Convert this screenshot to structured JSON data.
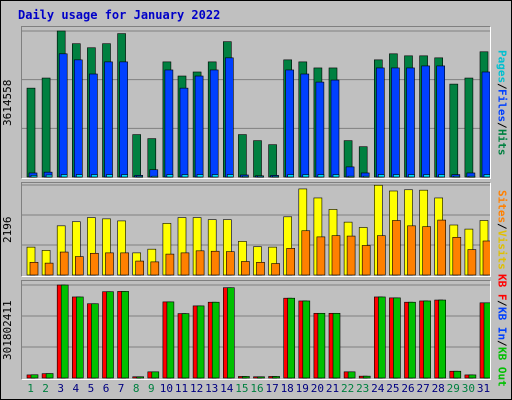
{
  "title": "Daily usage for January 2022",
  "chart_data": [
    {
      "type": "bar",
      "name": "pages-files-hits",
      "categories": [
        "1",
        "2",
        "3",
        "4",
        "5",
        "6",
        "7",
        "8",
        "9",
        "10",
        "11",
        "12",
        "13",
        "14",
        "15",
        "16",
        "17",
        "18",
        "19",
        "20",
        "21",
        "22",
        "23",
        "24",
        "25",
        "26",
        "27",
        "28",
        "29",
        "30",
        "31"
      ],
      "ymax_label": "3614558",
      "ylim": [
        0,
        3614558
      ],
      "series": [
        {
          "name": "Hits",
          "color": "#008040",
          "values": [
            2200000,
            2450000,
            3614558,
            3300000,
            3200000,
            3300000,
            3550000,
            1050000,
            950000,
            2850000,
            2500000,
            2600000,
            2850000,
            3350000,
            1050000,
            900000,
            800000,
            2900000,
            2850000,
            2700000,
            2700000,
            900000,
            750000,
            2900000,
            3050000,
            3000000,
            3000000,
            2950000,
            2300000,
            2450000,
            3100000
          ]
        },
        {
          "name": "Files",
          "color": "#0040ff",
          "values": [
            100000,
            120000,
            3050000,
            2900000,
            2550000,
            2850000,
            2850000,
            40000,
            180000,
            2650000,
            2200000,
            2500000,
            2650000,
            2950000,
            50000,
            30000,
            40000,
            2650000,
            2550000,
            2350000,
            2400000,
            250000,
            100000,
            2700000,
            2700000,
            2700000,
            2750000,
            2750000,
            60000,
            100000,
            2600000
          ]
        },
        {
          "name": "Pages",
          "color": "#00e0ff",
          "values": [
            40000,
            50000,
            60000,
            60000,
            60000,
            60000,
            60000,
            20000,
            20000,
            60000,
            60000,
            60000,
            60000,
            60000,
            20000,
            20000,
            20000,
            60000,
            60000,
            60000,
            60000,
            20000,
            20000,
            60000,
            60000,
            60000,
            60000,
            60000,
            20000,
            20000,
            60000
          ]
        }
      ]
    },
    {
      "type": "bar",
      "name": "visits-sites",
      "categories": [
        "1",
        "2",
        "3",
        "4",
        "5",
        "6",
        "7",
        "8",
        "9",
        "10",
        "11",
        "12",
        "13",
        "14",
        "15",
        "16",
        "17",
        "18",
        "19",
        "20",
        "21",
        "22",
        "23",
        "24",
        "25",
        "26",
        "27",
        "28",
        "29",
        "30",
        "31"
      ],
      "ymax_label": "2196",
      "ylim": [
        0,
        2196
      ],
      "series": [
        {
          "name": "Visits",
          "color": "#ffff00",
          "values": [
            680,
            600,
            1200,
            1300,
            1400,
            1370,
            1320,
            540,
            630,
            1260,
            1400,
            1400,
            1350,
            1350,
            820,
            690,
            680,
            1420,
            2100,
            1880,
            1600,
            1290,
            1160,
            2190,
            2050,
            2080,
            2070,
            1880,
            1220,
            1120,
            1330
          ]
        },
        {
          "name": "Sites",
          "color": "#ff8000",
          "values": [
            310,
            290,
            560,
            450,
            530,
            540,
            540,
            340,
            320,
            510,
            540,
            590,
            580,
            570,
            330,
            310,
            280,
            650,
            1080,
            930,
            960,
            950,
            720,
            960,
            1330,
            1200,
            1180,
            1340,
            920,
            620,
            830
          ]
        }
      ]
    },
    {
      "type": "bar",
      "name": "kb-in-out",
      "categories": [
        "1",
        "2",
        "3",
        "4",
        "5",
        "6",
        "7",
        "8",
        "9",
        "10",
        "11",
        "12",
        "13",
        "14",
        "15",
        "16",
        "17",
        "18",
        "19",
        "20",
        "21",
        "22",
        "23",
        "24",
        "25",
        "26",
        "27",
        "28",
        "29",
        "30",
        "31"
      ],
      "ymax_label": "301802411",
      "ylim": [
        0,
        301802411
      ],
      "series": [
        {
          "name": "KB F",
          "color": "#ff0000",
          "values": [
            10000000,
            14000000,
            301802411,
            263000000,
            241000000,
            280000000,
            281000000,
            4000000,
            20000000,
            247000000,
            209000000,
            234000000,
            246000000,
            293000000,
            5000000,
            4000000,
            5000000,
            259000000,
            250000000,
            210000000,
            210000000,
            20000000,
            6000000,
            263000000,
            260000000,
            246000000,
            250000000,
            253000000,
            22000000,
            10000000,
            244000000
          ]
        },
        {
          "name": "KB In",
          "color": "#0040ff",
          "values": [
            0,
            0,
            0,
            0,
            0,
            0,
            0,
            0,
            0,
            0,
            0,
            0,
            0,
            0,
            0,
            0,
            0,
            0,
            0,
            0,
            0,
            0,
            0,
            0,
            0,
            0,
            0,
            0,
            0,
            0,
            0
          ]
        },
        {
          "name": "KB Out",
          "color": "#00c000",
          "values": [
            10500000,
            14500000,
            301802411,
            263000000,
            241000000,
            280000000,
            281000000,
            4000000,
            20000000,
            247000000,
            209000000,
            234000000,
            246000000,
            293000000,
            5000000,
            4000000,
            5000000,
            259000000,
            250000000,
            210000000,
            210000000,
            20000000,
            6000000,
            263000000,
            260000000,
            246000000,
            250000000,
            253000000,
            22000000,
            10000000,
            244000000
          ]
        }
      ]
    }
  ],
  "day_colors": [
    "#008040",
    "#008040",
    "#000080",
    "#000080",
    "#000080",
    "#000080",
    "#000080",
    "#008040",
    "#008040",
    "#000080",
    "#000080",
    "#000080",
    "#000080",
    "#000080",
    "#008040",
    "#008040",
    "#000080",
    "#000080",
    "#000080",
    "#000080",
    "#000080",
    "#008040",
    "#008040",
    "#000080",
    "#000080",
    "#000080",
    "#000080",
    "#000080",
    "#008040",
    "#008040",
    "#000080"
  ],
  "legend": {
    "pages": "Pages",
    "files": "Files",
    "hits": "Hits",
    "visits": "Visits",
    "sites": "Sites",
    "kbf": "KB F",
    "kbin": "KB In",
    "kbout": "KB Out",
    "sep": " / "
  }
}
